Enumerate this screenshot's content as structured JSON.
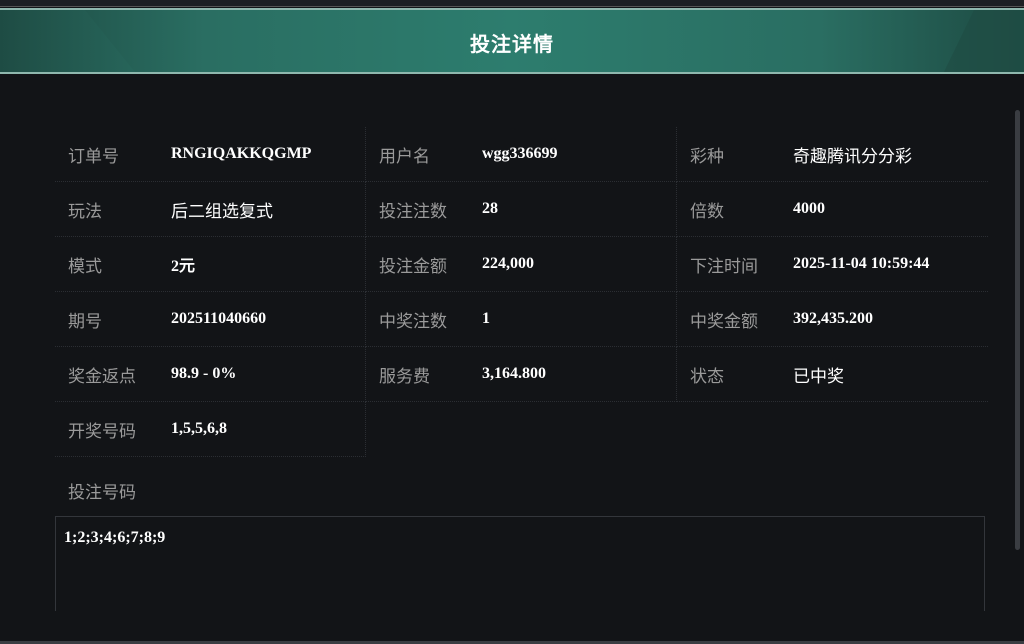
{
  "header": {
    "title": "投注详情"
  },
  "rows": [
    [
      {
        "label": "订单号",
        "value": "RNGIQAKKQGMP"
      },
      {
        "label": "用户名",
        "value": "wgg336699"
      },
      {
        "label": "彩种",
        "value": "奇趣腾讯分分彩"
      }
    ],
    [
      {
        "label": "玩法",
        "value": "后二组选复式"
      },
      {
        "label": "投注注数",
        "value": "28"
      },
      {
        "label": "倍数",
        "value": "4000"
      }
    ],
    [
      {
        "label": "模式",
        "value": "2元"
      },
      {
        "label": "投注金额",
        "value": "224,000"
      },
      {
        "label": "下注时间",
        "value": "2025-11-04 10:59:44"
      }
    ],
    [
      {
        "label": "期号",
        "value": "202511040660"
      },
      {
        "label": "中奖注数",
        "value": "1"
      },
      {
        "label": "中奖金额",
        "value": "392,435.200"
      }
    ],
    [
      {
        "label": "奖金返点",
        "value": "98.9 - 0%"
      },
      {
        "label": "服务费",
        "value": "3,164.800"
      },
      {
        "label": "状态",
        "value": "已中奖"
      }
    ],
    [
      {
        "label": "开奖号码",
        "value": "1,5,5,6,8"
      }
    ]
  ],
  "bet_numbers": {
    "label": "投注号码",
    "value": "1;2;3;4;6;7;8;9"
  }
}
